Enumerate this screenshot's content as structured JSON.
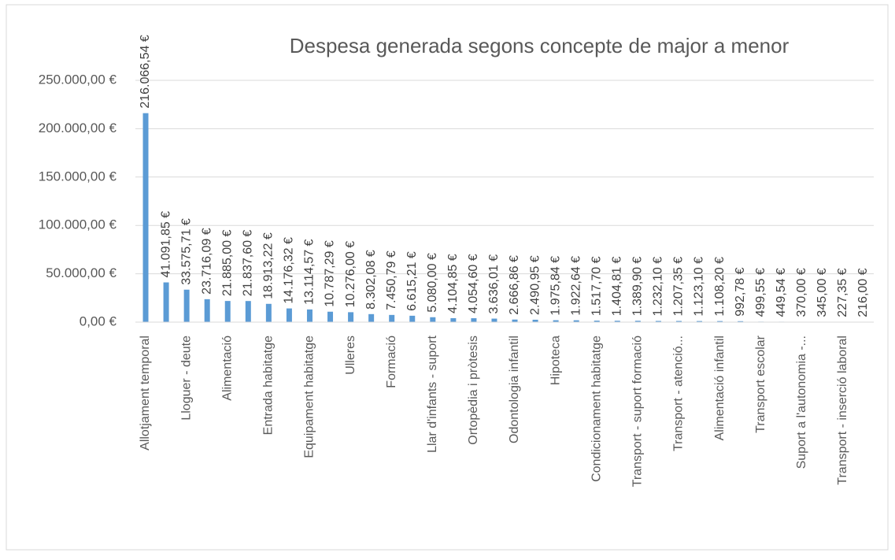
{
  "chart_data": {
    "type": "bar",
    "title": "Despesa generada segons concepte de major a menor",
    "categories": [
      "Allotjament temporal",
      null,
      "Lloguer - deute",
      null,
      "Alimentació",
      null,
      "Entrada habitatge",
      null,
      "Equipament habitatge",
      null,
      "Ulleres",
      null,
      "Formació",
      null,
      "Llar d'infants - suport",
      null,
      "Ortopèdia i pròtesis",
      null,
      "Odontologia infantil",
      null,
      "Hipoteca",
      null,
      "Condicionament habitatge",
      null,
      "Transport - suport formació",
      null,
      "Transport - atenció...",
      null,
      "Alimentació infantil",
      null,
      "Transport escolar",
      null,
      "Suport a l'autonomia -...",
      null,
      "Transport - inserció laboral",
      null
    ],
    "values": [
      216066.54,
      41091.85,
      33575.71,
      23716.09,
      21885.0,
      21837.6,
      18913.22,
      14176.32,
      13114.57,
      10787.29,
      10276.0,
      8302.08,
      7450.79,
      6615.21,
      5080.0,
      4104.85,
      4054.6,
      3636.01,
      2666.86,
      2490.95,
      1975.84,
      1922.64,
      1517.7,
      1404.81,
      1389.9,
      1232.1,
      1207.35,
      1123.1,
      1108.2,
      992.78,
      499.55,
      449.54,
      370.0,
      345.0,
      227.35,
      216.0
    ],
    "value_labels": [
      "216.066,54 €",
      "41.091,85 €",
      "33.575,71 €",
      "23.716,09 €",
      "21.885,00 €",
      "21.837,60 €",
      "18.913,22 €",
      "14.176,32 €",
      "13.114,57 €",
      "10.787,29 €",
      "10.276,00 €",
      "8.302,08 €",
      "7.450,79 €",
      "6.615,21 €",
      "5.080,00 €",
      "4.104,85 €",
      "4.054,60 €",
      "3.636,01 €",
      "2.666,86 €",
      "2.490,95 €",
      "1.975,84 €",
      "1.922,64 €",
      "1.517,70 €",
      "1.404,81 €",
      "1.389,90 €",
      "1.232,10 €",
      "1.207,35 €",
      "1.123,10 €",
      "1.108,20 €",
      "992,78 €",
      "499,55 €",
      "449,54 €",
      "370,00 €",
      "345,00 €",
      "227,35 €",
      "216,00 €"
    ],
    "color": "#5b9bd5",
    "ylim": [
      0,
      250000
    ],
    "yticks": [
      {
        "value": 0,
        "label": "0,00 €"
      },
      {
        "value": 50000,
        "label": "50.000,00 €"
      },
      {
        "value": 100000,
        "label": "100.000,00 €"
      },
      {
        "value": 150000,
        "label": "150.000,00 €"
      },
      {
        "value": 200000,
        "label": "200.000,00 €"
      },
      {
        "value": 250000,
        "label": "250.000,00 €"
      }
    ],
    "grid": true
  }
}
